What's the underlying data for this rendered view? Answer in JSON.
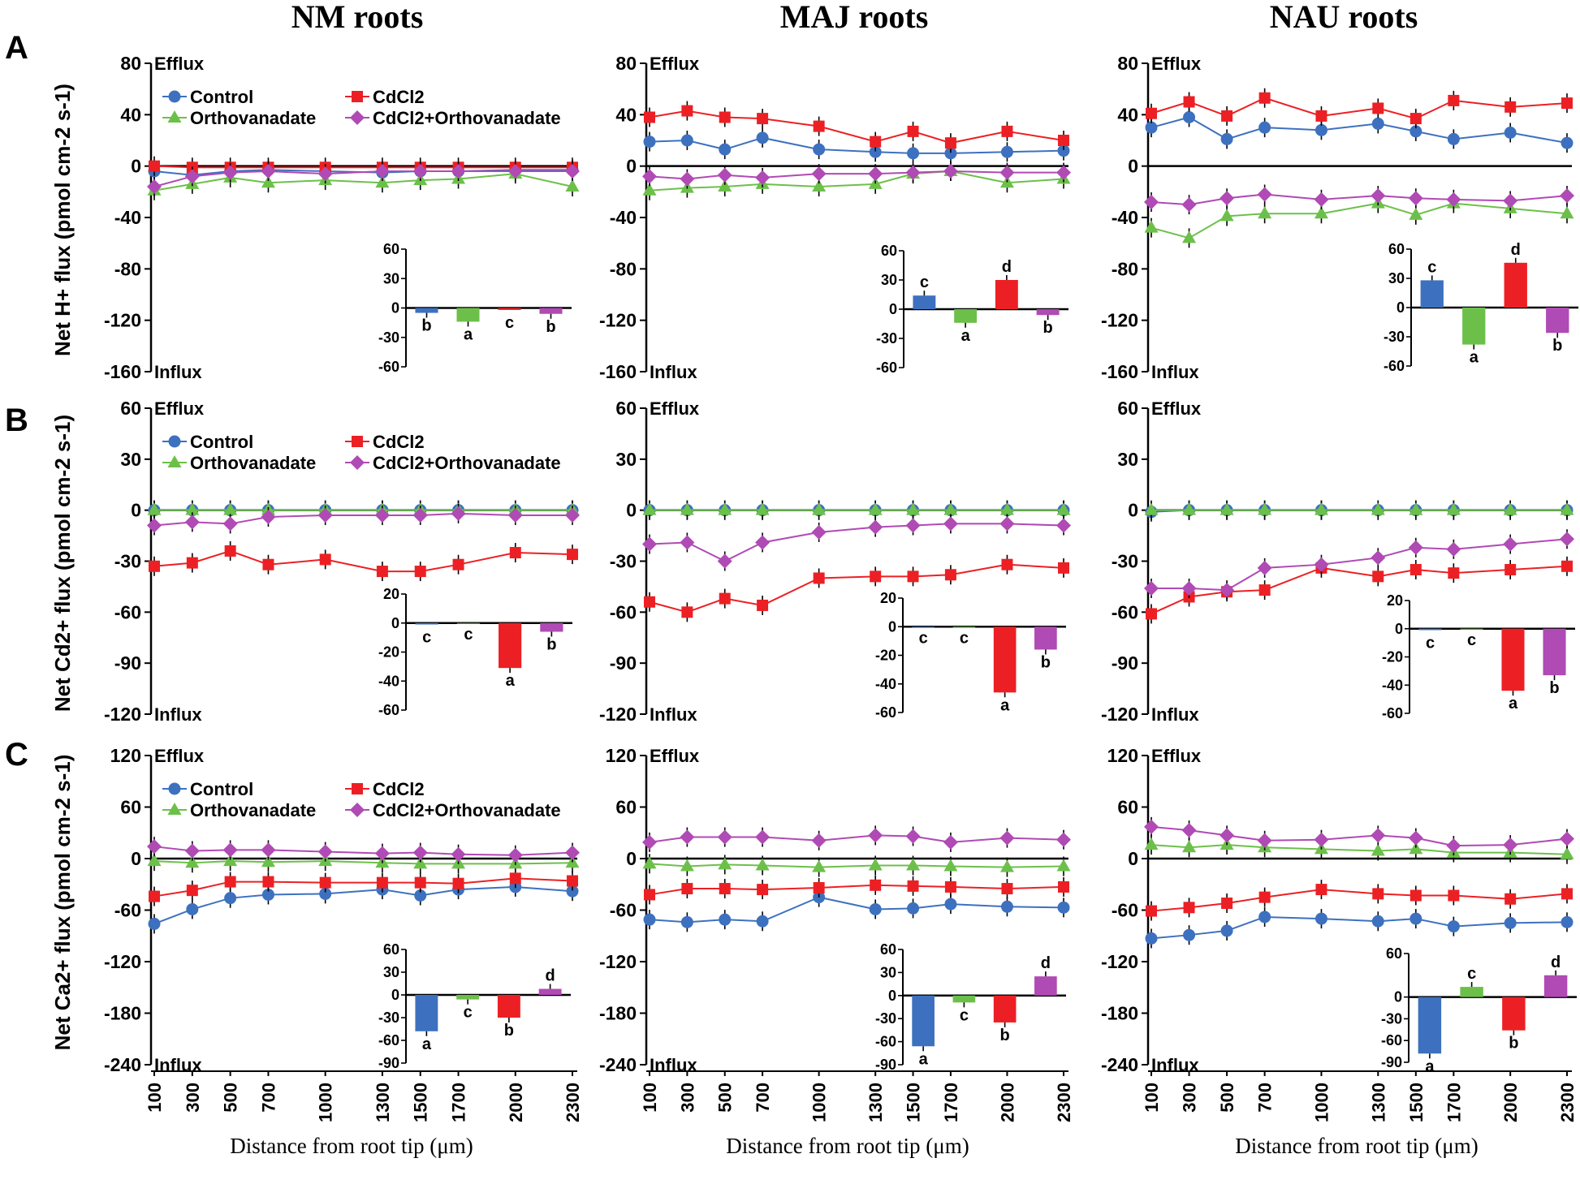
{
  "figure": {
    "column_titles": [
      "NM roots",
      "MAJ roots",
      "NAU roots"
    ],
    "row_labels": [
      "A",
      "B",
      "C"
    ],
    "row_ylabels": [
      "Net H+ flux (pmol cm-2 s-1)",
      "Net Cd2+ flux (pmol cm-2 s-1)",
      "Net Ca2+ flux (pmol cm-2 s-1)"
    ],
    "xlabel": "Distance from root tip (μm)",
    "x_ticks": [
      "100",
      "300",
      "500",
      "700",
      "1000",
      "1300",
      "1500",
      "1700",
      "2000",
      "2300"
    ],
    "efflux_label": "Efflux",
    "influx_label": "Influx"
  },
  "legend": [
    "Control",
    "Orthovanadate",
    "CdCl2",
    "CdCl2+Orthovanadate"
  ],
  "colors": {
    "Control": "#3d71bf",
    "Orthovanadate": "#6cc04a",
    "CdCl2": "#ec2024",
    "CdCl2+Orthovanadate": "#b04ab4"
  },
  "chart_data": [
    {
      "type": "line",
      "row": 0,
      "col": 0,
      "title": "NM roots",
      "ylabel": "Net H+ flux (pmol cm-2 s-1)",
      "ylim": [
        -160,
        80
      ],
      "yticks": [
        80,
        40,
        0,
        -40,
        -80,
        -120,
        -160
      ],
      "x": [
        100,
        300,
        500,
        700,
        1000,
        1300,
        1500,
        1700,
        2000,
        2300
      ],
      "series": [
        {
          "name": "Control",
          "values": [
            -4,
            -7,
            -4,
            -3,
            -4,
            -5,
            -4,
            -4,
            -3,
            -3
          ]
        },
        {
          "name": "Orthovanadate",
          "values": [
            -19,
            -14,
            -9,
            -13,
            -11,
            -13,
            -11,
            -10,
            -6,
            -16
          ]
        },
        {
          "name": "CdCl2",
          "values": [
            0,
            -1,
            -1,
            -1,
            -1,
            -1,
            -1,
            -1,
            -1,
            -1
          ]
        },
        {
          "name": "CdCl2+Orthovanadate",
          "values": [
            -16,
            -8,
            -5,
            -4,
            -6,
            -4,
            -4,
            -4,
            -4,
            -4
          ]
        }
      ],
      "inset": {
        "type": "bar",
        "ylim": [
          -60,
          60
        ],
        "yticks": [
          60,
          30,
          0,
          -30,
          -60
        ],
        "values": [
          -5,
          -14,
          -2,
          -6
        ],
        "letters": [
          "b",
          "a",
          "c",
          "b"
        ]
      }
    },
    {
      "type": "line",
      "row": 0,
      "col": 1,
      "title": "MAJ roots",
      "ylabel": "Net H+ flux (pmol cm-2 s-1)",
      "ylim": [
        -160,
        80
      ],
      "yticks": [
        80,
        40,
        0,
        -40,
        -80,
        -120,
        -160
      ],
      "x": [
        100,
        300,
        500,
        700,
        1000,
        1300,
        1500,
        1700,
        2000,
        2300
      ],
      "series": [
        {
          "name": "Control",
          "values": [
            19,
            20,
            13,
            22,
            13,
            11,
            10,
            10,
            11,
            12
          ]
        },
        {
          "name": "Orthovanadate",
          "values": [
            -19,
            -17,
            -16,
            -14,
            -16,
            -14,
            -6,
            -4,
            -13,
            -10
          ]
        },
        {
          "name": "CdCl2",
          "values": [
            38,
            43,
            38,
            37,
            31,
            19,
            27,
            18,
            27,
            20
          ]
        },
        {
          "name": "CdCl2+Orthovanadate",
          "values": [
            -8,
            -10,
            -7,
            -9,
            -6,
            -6,
            -5,
            -4,
            -5,
            -5
          ]
        }
      ],
      "inset": {
        "type": "bar",
        "ylim": [
          -60,
          60
        ],
        "yticks": [
          60,
          30,
          0,
          -30,
          -60
        ],
        "values": [
          14,
          -14,
          30,
          -6
        ],
        "letters": [
          "c",
          "a",
          "d",
          "b"
        ]
      }
    },
    {
      "type": "line",
      "row": 0,
      "col": 2,
      "title": "NAU roots",
      "ylabel": "Net H+ flux (pmol cm-2 s-1)",
      "ylim": [
        -160,
        80
      ],
      "yticks": [
        80,
        40,
        0,
        -40,
        -80,
        -120,
        -160
      ],
      "x": [
        100,
        300,
        500,
        700,
        1000,
        1300,
        1500,
        1700,
        2000,
        2300
      ],
      "series": [
        {
          "name": "Control",
          "values": [
            30,
            38,
            21,
            30,
            28,
            33,
            27,
            21,
            26,
            18
          ]
        },
        {
          "name": "Orthovanadate",
          "values": [
            -48,
            -56,
            -39,
            -37,
            -37,
            -29,
            -38,
            -29,
            -33,
            -37
          ]
        },
        {
          "name": "CdCl2",
          "values": [
            41,
            50,
            39,
            53,
            39,
            45,
            37,
            51,
            46,
            49
          ]
        },
        {
          "name": "CdCl2+Orthovanadate",
          "values": [
            -28,
            -30,
            -25,
            -22,
            -26,
            -23,
            -25,
            -26,
            -27,
            -23
          ]
        }
      ],
      "inset": {
        "type": "bar",
        "ylim": [
          -60,
          60
        ],
        "yticks": [
          60,
          30,
          0,
          -30,
          -60
        ],
        "values": [
          28,
          -38,
          46,
          -26
        ],
        "letters": [
          "c",
          "a",
          "d",
          "b"
        ]
      }
    },
    {
      "type": "line",
      "row": 1,
      "col": 0,
      "title": "NM roots",
      "ylabel": "Net Cd2+ flux (pmol cm-2 s-1)",
      "ylim": [
        -120,
        60
      ],
      "yticks": [
        60,
        30,
        0,
        -30,
        -60,
        -90,
        -120
      ],
      "x": [
        100,
        300,
        500,
        700,
        1000,
        1300,
        1500,
        1700,
        2000,
        2300
      ],
      "series": [
        {
          "name": "Control",
          "values": [
            0,
            0,
            0,
            0,
            0,
            0,
            0,
            0,
            0,
            0
          ]
        },
        {
          "name": "Orthovanadate",
          "values": [
            0,
            0,
            0,
            0,
            0,
            0,
            0,
            0,
            0,
            0
          ]
        },
        {
          "name": "CdCl2",
          "values": [
            -33,
            -31,
            -24,
            -32,
            -29,
            -36,
            -36,
            -32,
            -25,
            -26
          ]
        },
        {
          "name": "CdCl2+Orthovanadate",
          "values": [
            -9,
            -7,
            -8,
            -4,
            -3,
            -3,
            -3,
            -2,
            -3,
            -3
          ]
        }
      ],
      "inset": {
        "type": "bar",
        "ylim": [
          -60,
          20
        ],
        "yticks": [
          20,
          0,
          -20,
          -40,
          -60
        ],
        "values": [
          -1,
          0,
          -31,
          -6
        ],
        "letters": [
          "c",
          "c",
          "a",
          "b"
        ]
      }
    },
    {
      "type": "line",
      "row": 1,
      "col": 1,
      "title": "MAJ roots",
      "ylabel": "Net Cd2+ flux (pmol cm-2 s-1)",
      "ylim": [
        -120,
        60
      ],
      "yticks": [
        60,
        30,
        0,
        -30,
        -60,
        -90,
        -120
      ],
      "x": [
        100,
        300,
        500,
        700,
        1000,
        1300,
        1500,
        1700,
        2000,
        2300
      ],
      "series": [
        {
          "name": "Control",
          "values": [
            0,
            0,
            0,
            0,
            0,
            0,
            0,
            0,
            0,
            0
          ]
        },
        {
          "name": "Orthovanadate",
          "values": [
            0,
            0,
            0,
            0,
            0,
            0,
            0,
            0,
            0,
            0
          ]
        },
        {
          "name": "CdCl2",
          "values": [
            -54,
            -60,
            -52,
            -56,
            -40,
            -39,
            -39,
            -38,
            -32,
            -34
          ]
        },
        {
          "name": "CdCl2+Orthovanadate",
          "values": [
            -20,
            -19,
            -30,
            -19,
            -13,
            -10,
            -9,
            -8,
            -8,
            -9
          ]
        }
      ],
      "inset": {
        "type": "bar",
        "ylim": [
          -60,
          20
        ],
        "yticks": [
          20,
          0,
          -20,
          -40,
          -60
        ],
        "values": [
          0,
          0,
          -46,
          -16
        ],
        "letters": [
          "c",
          "c",
          "a",
          "b"
        ]
      }
    },
    {
      "type": "line",
      "row": 1,
      "col": 2,
      "title": "NAU roots",
      "ylabel": "Net Cd2+ flux (pmol cm-2 s-1)",
      "ylim": [
        -120,
        60
      ],
      "yticks": [
        60,
        30,
        0,
        -30,
        -60,
        -90,
        -120
      ],
      "x": [
        100,
        300,
        500,
        700,
        1000,
        1300,
        1500,
        1700,
        2000,
        2300
      ],
      "series": [
        {
          "name": "Control",
          "values": [
            -1,
            0,
            0,
            0,
            0,
            0,
            0,
            0,
            0,
            0
          ]
        },
        {
          "name": "Orthovanadate",
          "values": [
            0,
            0,
            0,
            0,
            0,
            0,
            0,
            0,
            0,
            0
          ]
        },
        {
          "name": "CdCl2",
          "values": [
            -61,
            -51,
            -48,
            -47,
            -34,
            -39,
            -35,
            -37,
            -35,
            -33
          ]
        },
        {
          "name": "CdCl2+Orthovanadate",
          "values": [
            -46,
            -46,
            -47,
            -34,
            -32,
            -28,
            -22,
            -23,
            -20,
            -17
          ]
        }
      ],
      "inset": {
        "type": "bar",
        "ylim": [
          -60,
          20
        ],
        "yticks": [
          20,
          0,
          -20,
          -40,
          -60
        ],
        "values": [
          -1,
          0,
          -44,
          -33
        ],
        "letters": [
          "c",
          "c",
          "a",
          "b"
        ]
      }
    },
    {
      "type": "line",
      "row": 2,
      "col": 0,
      "title": "NM roots",
      "ylabel": "Net Ca2+ flux (pmol cm-2 s-1)",
      "ylim": [
        -240,
        120
      ],
      "yticks": [
        120,
        60,
        0,
        -60,
        -120,
        -180,
        -240
      ],
      "x": [
        100,
        300,
        500,
        700,
        1000,
        1300,
        1500,
        1700,
        2000,
        2300
      ],
      "series": [
        {
          "name": "Control",
          "values": [
            -76,
            -59,
            -46,
            -42,
            -41,
            -36,
            -43,
            -36,
            -33,
            -38
          ]
        },
        {
          "name": "Orthovanadate",
          "values": [
            -3,
            -5,
            -3,
            -4,
            -3,
            -5,
            -6,
            -6,
            -6,
            -5
          ]
        },
        {
          "name": "CdCl2",
          "values": [
            -44,
            -37,
            -27,
            -27,
            -28,
            -28,
            -28,
            -29,
            -23,
            -26
          ]
        },
        {
          "name": "CdCl2+Orthovanadate",
          "values": [
            14,
            9,
            10,
            10,
            8,
            6,
            7,
            5,
            4,
            7
          ]
        }
      ],
      "inset": {
        "type": "bar",
        "ylim": [
          -90,
          60
        ],
        "yticks": [
          60,
          30,
          0,
          -30,
          -60,
          -90
        ],
        "values": [
          -48,
          -6,
          -30,
          8
        ],
        "letters": [
          "a",
          "c",
          "b",
          "d"
        ]
      }
    },
    {
      "type": "line",
      "row": 2,
      "col": 1,
      "title": "MAJ roots",
      "ylabel": "Net Ca2+ flux (pmol cm-2 s-1)",
      "ylim": [
        -240,
        120
      ],
      "yticks": [
        120,
        60,
        0,
        -60,
        -120,
        -180,
        -240
      ],
      "x": [
        100,
        300,
        500,
        700,
        1000,
        1300,
        1500,
        1700,
        2000,
        2300
      ],
      "series": [
        {
          "name": "Control",
          "values": [
            -71,
            -74,
            -71,
            -73,
            -45,
            -59,
            -58,
            -53,
            -56,
            -57
          ]
        },
        {
          "name": "Orthovanadate",
          "values": [
            -6,
            -9,
            -7,
            -8,
            -10,
            -8,
            -8,
            -9,
            -10,
            -9
          ]
        },
        {
          "name": "CdCl2",
          "values": [
            -42,
            -35,
            -35,
            -36,
            -34,
            -31,
            -32,
            -33,
            -35,
            -33
          ]
        },
        {
          "name": "CdCl2+Orthovanadate",
          "values": [
            19,
            25,
            25,
            25,
            21,
            27,
            26,
            19,
            24,
            22
          ]
        }
      ],
      "inset": {
        "type": "bar",
        "ylim": [
          -90,
          60
        ],
        "yticks": [
          60,
          30,
          0,
          -30,
          -60,
          -90
        ],
        "values": [
          -66,
          -9,
          -35,
          25
        ],
        "letters": [
          "a",
          "c",
          "b",
          "d"
        ]
      }
    },
    {
      "type": "line",
      "row": 2,
      "col": 2,
      "title": "NAU roots",
      "ylabel": "Net Ca2+ flux (pmol cm-2 s-1)",
      "ylim": [
        -240,
        120
      ],
      "yticks": [
        120,
        60,
        0,
        -60,
        -120,
        -180,
        -240
      ],
      "x": [
        100,
        300,
        500,
        700,
        1000,
        1300,
        1500,
        1700,
        2000,
        2300
      ],
      "series": [
        {
          "name": "Control",
          "values": [
            -93,
            -89,
            -84,
            -68,
            -70,
            -73,
            -70,
            -79,
            -75,
            -74
          ]
        },
        {
          "name": "Orthovanadate",
          "values": [
            16,
            13,
            16,
            13,
            11,
            9,
            11,
            7,
            7,
            5
          ]
        },
        {
          "name": "CdCl2",
          "values": [
            -61,
            -57,
            -52,
            -45,
            -36,
            -41,
            -43,
            -43,
            -47,
            -41
          ]
        },
        {
          "name": "CdCl2+Orthovanadate",
          "values": [
            37,
            33,
            27,
            21,
            22,
            27,
            24,
            15,
            16,
            23
          ]
        }
      ],
      "inset": {
        "type": "bar",
        "ylim": [
          -90,
          60
        ],
        "yticks": [
          60,
          0,
          -30,
          -60,
          -90
        ],
        "values": [
          -78,
          14,
          -46,
          30
        ],
        "letters": [
          "a",
          "c",
          "b",
          "d"
        ]
      }
    }
  ]
}
